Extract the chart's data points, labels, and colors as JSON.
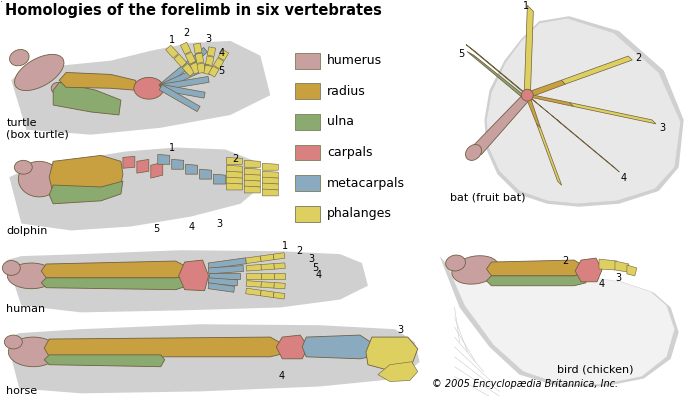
{
  "title": "Homologies of the forelimb in six vertebrates",
  "title_fontsize": 10.5,
  "title_fontweight": "bold",
  "bg_color": "#ffffff",
  "legend_items": [
    {
      "label": "humerus",
      "color": "#c9a0a0"
    },
    {
      "label": "radius",
      "color": "#c8a040"
    },
    {
      "label": "ulna",
      "color": "#8aaa70"
    },
    {
      "label": "carpals",
      "color": "#d98080"
    },
    {
      "label": "metacarpals",
      "color": "#8aabbf"
    },
    {
      "label": "phalanges",
      "color": "#ddd060"
    }
  ],
  "copyright": "© 2005 Encyclopædia Britannica, Inc.",
  "shadow_color": "#d4d4d4",
  "bone_colors": {
    "humerus": "#c9a0a0",
    "radius": "#c8a040",
    "ulna": "#8aaa70",
    "carpals": "#d98080",
    "metacarpals": "#8aabbf",
    "phalanges": "#ddd060"
  }
}
